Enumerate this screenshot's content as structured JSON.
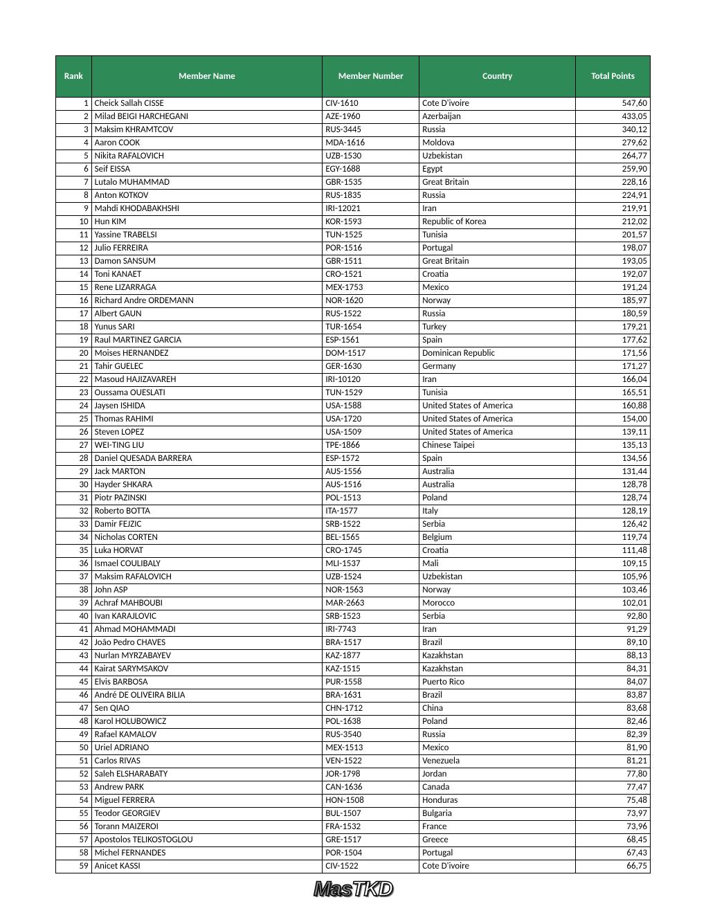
{
  "headers": {
    "rank": "Rank",
    "name": "Member Name",
    "number": "Member Number",
    "country": "Country",
    "points": "Total Points"
  },
  "header_bg": "#2e8b57",
  "header_fg": "#ffffff",
  "border_color": "#000000",
  "logo_text_1": "Mas",
  "logo_text_2": "TKD",
  "rows": [
    {
      "rank": "1",
      "name": "Cheick Sallah CISSE",
      "number": "CIV-1610",
      "country": "Cote D'ivoire",
      "points": "547,60"
    },
    {
      "rank": "2",
      "name": "Milad BEIGI HARCHEGANI",
      "number": "AZE-1960",
      "country": "Azerbaijan",
      "points": "433,05"
    },
    {
      "rank": "3",
      "name": "Maksim KHRAMTCOV",
      "number": "RUS-3445",
      "country": "Russia",
      "points": "340,12"
    },
    {
      "rank": "4",
      "name": "Aaron COOK",
      "number": "MDA-1616",
      "country": "Moldova",
      "points": "279,62"
    },
    {
      "rank": "5",
      "name": "Nikita RAFALOVICH",
      "number": "UZB-1530",
      "country": "Uzbekistan",
      "points": "264,77"
    },
    {
      "rank": "6",
      "name": "Seif EISSA",
      "number": "EGY-1688",
      "country": "Egypt",
      "points": "259,90"
    },
    {
      "rank": "7",
      "name": "Lutalo MUHAMMAD",
      "number": "GBR-1535",
      "country": "Great Britain",
      "points": "228,16"
    },
    {
      "rank": "8",
      "name": "Anton KOTKOV",
      "number": "RUS-1835",
      "country": "Russia",
      "points": "224,91"
    },
    {
      "rank": "9",
      "name": "Mahdi KHODABAKHSHI",
      "number": "IRI-12021",
      "country": "Iran",
      "points": "219,91"
    },
    {
      "rank": "10",
      "name": "Hun KIM",
      "number": "KOR-1593",
      "country": "Republic of Korea",
      "points": "212,02"
    },
    {
      "rank": "11",
      "name": "Yassine TRABELSI",
      "number": "TUN-1525",
      "country": "Tunisia",
      "points": "201,57"
    },
    {
      "rank": "12",
      "name": "Julio FERREIRA",
      "number": "POR-1516",
      "country": "Portugal",
      "points": "198,07"
    },
    {
      "rank": "13",
      "name": "Damon SANSUM",
      "number": "GBR-1511",
      "country": "Great Britain",
      "points": "193,05"
    },
    {
      "rank": "14",
      "name": "Toni KANAET",
      "number": "CRO-1521",
      "country": "Croatia",
      "points": "192,07"
    },
    {
      "rank": "15",
      "name": "Rene LIZARRAGA",
      "number": "MEX-1753",
      "country": "Mexico",
      "points": "191,24"
    },
    {
      "rank": "16",
      "name": "Richard Andre ORDEMANN",
      "number": "NOR-1620",
      "country": "Norway",
      "points": "185,97"
    },
    {
      "rank": "17",
      "name": "Albert GAUN",
      "number": "RUS-1522",
      "country": "Russia",
      "points": "180,59"
    },
    {
      "rank": "18",
      "name": "Yunus SARI",
      "number": "TUR-1654",
      "country": "Turkey",
      "points": "179,21"
    },
    {
      "rank": "19",
      "name": "Raul MARTINEZ GARCIA",
      "number": "ESP-1561",
      "country": "Spain",
      "points": "177,62"
    },
    {
      "rank": "20",
      "name": "Moises HERNANDEZ",
      "number": "DOM-1517",
      "country": "Dominican Republic",
      "points": "171,56"
    },
    {
      "rank": "21",
      "name": "Tahir GUELEC",
      "number": "GER-1630",
      "country": "Germany",
      "points": "171,27"
    },
    {
      "rank": "22",
      "name": "Masoud HAJIZAVAREH",
      "number": "IRI-10120",
      "country": "Iran",
      "points": "166,04"
    },
    {
      "rank": "23",
      "name": "Oussama OUESLATI",
      "number": "TUN-1529",
      "country": "Tunisia",
      "points": "165,51"
    },
    {
      "rank": "24",
      "name": "Jaysen ISHIDA",
      "number": "USA-1588",
      "country": "United States of America",
      "points": "160,88"
    },
    {
      "rank": "25",
      "name": "Thomas RAHIMI",
      "number": "USA-1720",
      "country": "United States of America",
      "points": "154,00"
    },
    {
      "rank": "26",
      "name": "Steven LOPEZ",
      "number": "USA-1509",
      "country": "United States of America",
      "points": "139,11"
    },
    {
      "rank": "27",
      "name": "WEI-TING LIU",
      "number": "TPE-1866",
      "country": "Chinese Taipei",
      "points": "135,13"
    },
    {
      "rank": "28",
      "name": "Daniel QUESADA BARRERA",
      "number": "ESP-1572",
      "country": "Spain",
      "points": "134,56"
    },
    {
      "rank": "29",
      "name": "Jack MARTON",
      "number": "AUS-1556",
      "country": "Australia",
      "points": "131,44"
    },
    {
      "rank": "30",
      "name": "Hayder SHKARA",
      "number": "AUS-1516",
      "country": "Australia",
      "points": "128,78"
    },
    {
      "rank": "31",
      "name": "Piotr PAZINSKI",
      "number": "POL-1513",
      "country": "Poland",
      "points": "128,74"
    },
    {
      "rank": "32",
      "name": "Roberto BOTTA",
      "number": "ITA-1577",
      "country": "Italy",
      "points": "128,19"
    },
    {
      "rank": "33",
      "name": "Damir FEJZIC",
      "number": "SRB-1522",
      "country": "Serbia",
      "points": "126,42"
    },
    {
      "rank": "34",
      "name": "Nicholas CORTEN",
      "number": "BEL-1565",
      "country": "Belgium",
      "points": "119,74"
    },
    {
      "rank": "35",
      "name": "Luka HORVAT",
      "number": "CRO-1745",
      "country": "Croatia",
      "points": "111,48"
    },
    {
      "rank": "36",
      "name": "Ismael COULIBALY",
      "number": "MLI-1537",
      "country": "Mali",
      "points": "109,15"
    },
    {
      "rank": "37",
      "name": "Maksim RAFALOVICH",
      "number": "UZB-1524",
      "country": "Uzbekistan",
      "points": "105,96"
    },
    {
      "rank": "38",
      "name": "John ASP",
      "number": "NOR-1563",
      "country": "Norway",
      "points": "103,46"
    },
    {
      "rank": "39",
      "name": "Achraf MAHBOUBI",
      "number": "MAR-2663",
      "country": "Morocco",
      "points": "102,01"
    },
    {
      "rank": "40",
      "name": "Ivan KARAJLOVIC",
      "number": "SRB-1523",
      "country": "Serbia",
      "points": "92,80"
    },
    {
      "rank": "41",
      "name": "Ahmad MOHAMMADI",
      "number": "IRI-7743",
      "country": "Iran",
      "points": "91,29"
    },
    {
      "rank": "42",
      "name": "João Pedro CHAVES",
      "number": "BRA-1517",
      "country": "Brazil",
      "points": "89,10"
    },
    {
      "rank": "43",
      "name": "Nurlan MYRZABAYEV",
      "number": "KAZ-1877",
      "country": "Kazakhstan",
      "points": "88,13"
    },
    {
      "rank": "44",
      "name": "Kairat SARYMSAKOV",
      "number": "KAZ-1515",
      "country": "Kazakhstan",
      "points": "84,31"
    },
    {
      "rank": "45",
      "name": "Elvis BARBOSA",
      "number": "PUR-1558",
      "country": "Puerto Rico",
      "points": "84,07"
    },
    {
      "rank": "46",
      "name": "André DE OLIVEIRA BILIA",
      "number": "BRA-1631",
      "country": "Brazil",
      "points": "83,87"
    },
    {
      "rank": "47",
      "name": "Sen QIAO",
      "number": "CHN-1712",
      "country": "China",
      "points": "83,68"
    },
    {
      "rank": "48",
      "name": "Karol HOLUBOWICZ",
      "number": "POL-1638",
      "country": "Poland",
      "points": "82,46"
    },
    {
      "rank": "49",
      "name": "Rafael KAMALOV",
      "number": "RUS-3540",
      "country": "Russia",
      "points": "82,39"
    },
    {
      "rank": "50",
      "name": "Uriel ADRIANO",
      "number": "MEX-1513",
      "country": "Mexico",
      "points": "81,90"
    },
    {
      "rank": "51",
      "name": "Carlos RIVAS",
      "number": "VEN-1522",
      "country": "Venezuela",
      "points": "81,21"
    },
    {
      "rank": "52",
      "name": "Saleh ELSHARABATY",
      "number": "JOR-1798",
      "country": "Jordan",
      "points": "77,80"
    },
    {
      "rank": "53",
      "name": "Andrew PARK",
      "number": "CAN-1636",
      "country": "Canada",
      "points": "77,47"
    },
    {
      "rank": "54",
      "name": "Miguel FERRERA",
      "number": "HON-1508",
      "country": "Honduras",
      "points": "75,48"
    },
    {
      "rank": "55",
      "name": "Teodor GEORGIEV",
      "number": "BUL-1507",
      "country": "Bulgaria",
      "points": "73,97"
    },
    {
      "rank": "56",
      "name": "Torann MAIZEROI",
      "number": "FRA-1532",
      "country": "France",
      "points": "73,96"
    },
    {
      "rank": "57",
      "name": "Apostolos TELIKOSTOGLOU",
      "number": "GRE-1517",
      "country": "Greece",
      "points": "68,45"
    },
    {
      "rank": "58",
      "name": "Michel FERNANDES",
      "number": "POR-1504",
      "country": "Portugal",
      "points": "67,43"
    },
    {
      "rank": "59",
      "name": "Anicet KASSI",
      "number": "CIV-1522",
      "country": "Cote D'ivoire",
      "points": "66,75"
    }
  ]
}
